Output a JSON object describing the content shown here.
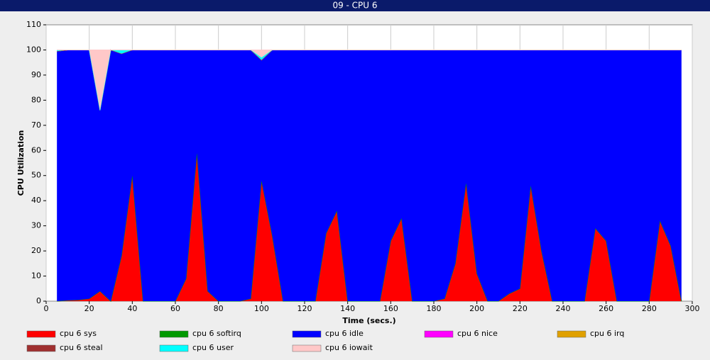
{
  "chart_data": {
    "type": "stacked-area",
    "title": "09 - CPU 6",
    "x_label": "Time (secs.)",
    "y_label": "CPU Utilization",
    "xlim": [
      0,
      300
    ],
    "xticks": [
      0,
      20,
      40,
      60,
      80,
      100,
      120,
      140,
      160,
      180,
      200,
      220,
      240,
      260,
      280,
      300
    ],
    "ylim": [
      0,
      110
    ],
    "yticks": [
      0,
      10,
      20,
      30,
      40,
      50,
      60,
      70,
      80,
      90,
      100,
      110
    ],
    "grid": "x",
    "x": [
      5,
      10,
      15,
      20,
      25,
      30,
      35,
      40,
      45,
      50,
      55,
      60,
      65,
      70,
      75,
      80,
      85,
      90,
      95,
      100,
      105,
      110,
      115,
      120,
      125,
      130,
      135,
      140,
      145,
      150,
      155,
      160,
      165,
      170,
      175,
      180,
      185,
      190,
      195,
      200,
      205,
      210,
      215,
      220,
      225,
      230,
      235,
      240,
      245,
      250,
      255,
      260,
      265,
      270,
      275,
      280,
      285,
      290,
      295
    ],
    "series": [
      {
        "name": "cpu 6 sys",
        "color": "#ff0000",
        "values": [
          0,
          0.3,
          0.5,
          1,
          4,
          0,
          18,
          50,
          0,
          0,
          0,
          0,
          9,
          59,
          4,
          0,
          0,
          0,
          1,
          48,
          26,
          0,
          0,
          0,
          0,
          27,
          36,
          0,
          0,
          0,
          0,
          24,
          33,
          0,
          0,
          0,
          1,
          15,
          47,
          11,
          0,
          0,
          3,
          5,
          46,
          20,
          0,
          0,
          0,
          0,
          29,
          24,
          0,
          0,
          0,
          0,
          32,
          22,
          0
        ]
      },
      {
        "name": "cpu 6 softirq",
        "color": "#009900",
        "values": [
          0,
          0,
          0,
          0,
          0,
          0,
          0,
          0,
          0,
          0,
          0,
          0,
          0,
          0,
          0,
          0,
          0,
          0,
          0,
          0,
          0,
          0,
          0,
          0,
          0,
          0,
          0,
          0,
          0,
          0,
          0,
          0,
          0,
          0,
          0,
          0,
          0,
          0,
          0,
          0,
          0,
          0,
          0,
          0,
          0,
          0,
          0,
          0,
          0,
          0,
          0,
          0,
          0,
          0,
          0,
          0,
          0,
          0,
          0
        ]
      },
      {
        "name": "cpu 6 idle",
        "color": "#0000ff",
        "values": [
          99.5,
          99.7,
          99.5,
          99,
          72,
          100,
          80.5,
          50,
          100,
          100,
          100,
          100,
          91,
          41,
          96,
          100,
          100,
          100,
          99,
          48,
          74,
          100,
          100,
          100,
          100,
          73,
          64,
          100,
          100,
          100,
          100,
          76,
          67,
          100,
          100,
          100,
          99,
          85,
          53,
          89,
          100,
          100,
          97,
          95,
          54,
          80,
          100,
          100,
          100,
          100,
          71,
          76,
          100,
          100,
          100,
          100,
          68,
          78,
          100
        ]
      },
      {
        "name": "cpu 6 nice",
        "color": "#ff00ff",
        "values": [
          0,
          0,
          0,
          0,
          0,
          0,
          0,
          0,
          0,
          0,
          0,
          0,
          0,
          0,
          0,
          0,
          0,
          0,
          0,
          0,
          0,
          0,
          0,
          0,
          0,
          0,
          0,
          0,
          0,
          0,
          0,
          0,
          0,
          0,
          0,
          0,
          0,
          0,
          0,
          0,
          0,
          0,
          0,
          0,
          0,
          0,
          0,
          0,
          0,
          0,
          0,
          0,
          0,
          0,
          0,
          0,
          0,
          0,
          0
        ]
      },
      {
        "name": "cpu 6 irq",
        "color": "#e0a000",
        "values": [
          0,
          0,
          0,
          0,
          0,
          0,
          0,
          0,
          0,
          0,
          0,
          0,
          0,
          0,
          0,
          0,
          0,
          0,
          0,
          0,
          0,
          0,
          0,
          0,
          0,
          0,
          0,
          0,
          0,
          0,
          0,
          0,
          0,
          0,
          0,
          0,
          0,
          0,
          0,
          0,
          0,
          0,
          0,
          0,
          0,
          0,
          0,
          0,
          0,
          0,
          0,
          0,
          0,
          0,
          0,
          0,
          0,
          0,
          0
        ]
      },
      {
        "name": "cpu 6 steal",
        "color": "#a03030",
        "values": [
          0,
          0,
          0,
          0,
          0,
          0,
          0,
          0,
          0,
          0,
          0,
          0,
          0,
          0,
          0,
          0,
          0,
          0,
          0,
          0,
          0,
          0,
          0,
          0,
          0,
          0,
          0,
          0,
          0,
          0,
          0,
          0,
          0,
          0,
          0,
          0,
          0,
          0,
          0,
          0,
          0,
          0,
          0,
          0,
          0,
          0,
          0,
          0,
          0,
          0,
          0,
          0,
          0,
          0,
          0,
          0,
          0,
          0,
          0
        ]
      },
      {
        "name": "cpu 6 user",
        "color": "#00ffff",
        "values": [
          0.5,
          0,
          0,
          0,
          0,
          0,
          1.5,
          0,
          0,
          0,
          0,
          0,
          0,
          0,
          0,
          0,
          0,
          0,
          0,
          1,
          0,
          0,
          0,
          0,
          0,
          0,
          0,
          0,
          0,
          0,
          0,
          0,
          0,
          0,
          0,
          0,
          0,
          0,
          0,
          0,
          0,
          0,
          0,
          0,
          0,
          0,
          0,
          0,
          0,
          0,
          0,
          0,
          0,
          0,
          0,
          0,
          0,
          0,
          0
        ]
      },
      {
        "name": "cpu 6 iowait",
        "color": "#ffc8c8",
        "values": [
          0,
          0,
          0,
          0,
          24,
          0,
          0,
          0,
          0,
          0,
          0,
          0,
          0,
          0,
          0,
          0,
          0,
          0,
          0,
          3,
          0,
          0,
          0,
          0,
          0,
          0,
          0,
          0,
          0,
          0,
          0,
          0,
          0,
          0,
          0,
          0,
          0,
          0,
          0,
          0,
          0,
          0,
          0,
          0,
          0,
          0,
          0,
          0,
          0,
          0,
          0,
          0,
          0,
          0,
          0,
          0,
          0,
          0,
          0
        ]
      }
    ]
  }
}
